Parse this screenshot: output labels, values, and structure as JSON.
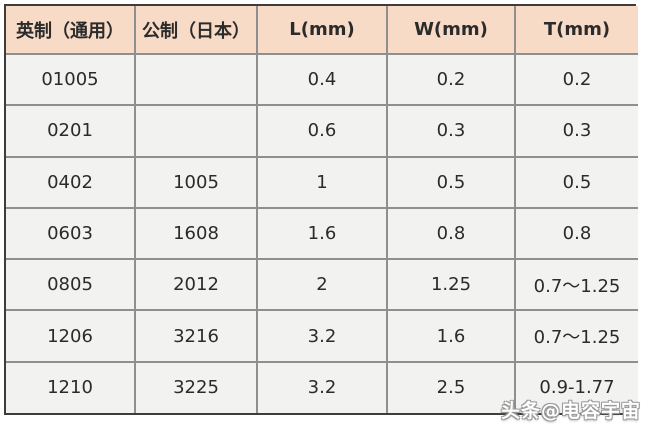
{
  "table": {
    "headers": [
      "英制（通用）",
      "公制（日本）",
      "L(mm)",
      "W(mm)",
      "T(mm)"
    ],
    "rows": [
      [
        "01005",
        "",
        "0.4",
        "0.2",
        "0.2"
      ],
      [
        "0201",
        "",
        "0.6",
        "0.3",
        "0.3"
      ],
      [
        "0402",
        "1005",
        "1",
        "0.5",
        "0.5"
      ],
      [
        "0603",
        "1608",
        "1.6",
        "0.8",
        "0.8"
      ],
      [
        "0805",
        "2012",
        "2",
        "1.25",
        "0.7〜1.25"
      ],
      [
        "1206",
        "3216",
        "3.2",
        "1.6",
        "0.7〜1.25"
      ],
      [
        "1210",
        "3225",
        "3.2",
        "2.5",
        "0.9-1.77"
      ]
    ]
  },
  "chart_data": {
    "type": "table",
    "title": "",
    "columns": [
      "英制（通用）",
      "公制（日本）",
      "L(mm)",
      "W(mm)",
      "T(mm)"
    ],
    "rows": [
      {
        "imperial": "01005",
        "metric": "",
        "L_mm": "0.4",
        "W_mm": "0.2",
        "T_mm": "0.2"
      },
      {
        "imperial": "0201",
        "metric": "",
        "L_mm": "0.6",
        "W_mm": "0.3",
        "T_mm": "0.3"
      },
      {
        "imperial": "0402",
        "metric": "1005",
        "L_mm": "1",
        "W_mm": "0.5",
        "T_mm": "0.5"
      },
      {
        "imperial": "0603",
        "metric": "1608",
        "L_mm": "1.6",
        "W_mm": "0.8",
        "T_mm": "0.8"
      },
      {
        "imperial": "0805",
        "metric": "2012",
        "L_mm": "2",
        "W_mm": "1.25",
        "T_mm": "0.7〜1.25"
      },
      {
        "imperial": "1206",
        "metric": "3216",
        "L_mm": "3.2",
        "W_mm": "1.6",
        "T_mm": "0.7〜1.25"
      },
      {
        "imperial": "1210",
        "metric": "3225",
        "L_mm": "3.2",
        "W_mm": "2.5",
        "T_mm": "0.9-1.77"
      }
    ]
  },
  "watermark": {
    "text": "头条@电容宇宙"
  },
  "colors": {
    "page_bg": "#ffffff",
    "header_bg": "#f8dbc7",
    "row_bg": "#f2f2f0",
    "border_outer": "#3d3d3d",
    "border_inner": "#8f8f8f",
    "text": "#2b2b2b",
    "watermark_fill": "#ffffff",
    "watermark_outline": "#9a9a9a"
  }
}
